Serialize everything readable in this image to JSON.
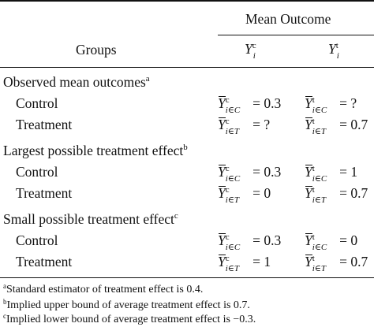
{
  "header": {
    "group_col": "Groups",
    "mean_outcome": "Mean Outcome",
    "col_c": {
      "var": "Y",
      "sup": "c",
      "sub": "i"
    },
    "col_t": {
      "var": "Y",
      "sup": "t",
      "sub": "i"
    }
  },
  "sections": [
    {
      "title": "Observed mean outcomes",
      "note": "a",
      "rows": [
        {
          "label": "Control",
          "c": {
            "sup": "c",
            "sub": "i∈C",
            "rest": " = 0.3"
          },
          "t": {
            "sup": "t",
            "sub": "i∈C",
            "rest": " = ?"
          }
        },
        {
          "label": "Treatment",
          "c": {
            "sup": "c",
            "sub": "i∈T",
            "rest": " = ?"
          },
          "t": {
            "sup": "t",
            "sub": "i∈T",
            "rest": " = 0.7"
          }
        }
      ]
    },
    {
      "title": "Largest possible treatment effect",
      "note": "b",
      "rows": [
        {
          "label": "Control",
          "c": {
            "sup": "c",
            "sub": "i∈C",
            "rest": " = 0.3"
          },
          "t": {
            "sup": "t",
            "sub": "i∈C",
            "rest": " = 1"
          }
        },
        {
          "label": "Treatment",
          "c": {
            "sup": "c",
            "sub": "i∈T",
            "rest": " = 0"
          },
          "t": {
            "sup": "t",
            "sub": "i∈T",
            "rest": " = 0.7"
          }
        }
      ]
    },
    {
      "title": "Small possible treatment effect",
      "note": "c",
      "rows": [
        {
          "label": "Control",
          "c": {
            "sup": "c",
            "sub": "i∈C",
            "rest": " = 0.3"
          },
          "t": {
            "sup": "t",
            "sub": "i∈C",
            "rest": " = 0"
          }
        },
        {
          "label": "Treatment",
          "c": {
            "sup": "c",
            "sub": "i∈T",
            "rest": " = 1"
          },
          "t": {
            "sup": "t",
            "sub": "i∈T",
            "rest": " = 0.7"
          }
        }
      ]
    }
  ],
  "footnotes": [
    {
      "mark": "a",
      "text": "Standard estimator of treatment effect is 0.4."
    },
    {
      "mark": "b",
      "text": "Implied upper bound of average treatment effect is 0.7."
    },
    {
      "mark": "c",
      "text": "Implied lower bound of average treatment effect is −0.3."
    }
  ]
}
